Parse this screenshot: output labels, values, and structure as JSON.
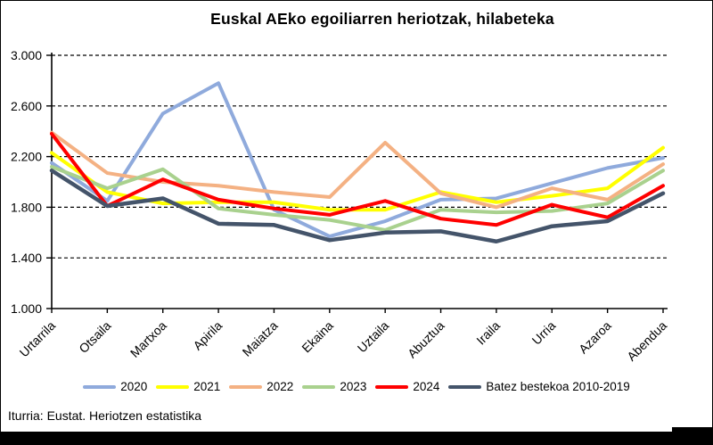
{
  "title": "Euskal AEko egoiliarren heriotzak, hilabeteka",
  "source": "Iturria: Eustat. Heriotzen estatistika",
  "chart_data": {
    "type": "line",
    "title": "Euskal AEko egoiliarren heriotzak, hilabeteka",
    "xlabel": "",
    "ylabel": "",
    "ylim": [
      1000,
      3000
    ],
    "ytick_step": 400,
    "ytick_labels": [
      "3.000",
      "2.600",
      "2.200",
      "1.800",
      "1.400",
      "1.000"
    ],
    "ytick_values": [
      3000,
      2600,
      2200,
      1800,
      1400,
      1000
    ],
    "grid": "horizontal-dashed",
    "legend_position": "bottom",
    "categories": [
      "Urtarrila",
      "Otsaila",
      "Martxoa",
      "Apirila",
      "Maiatza",
      "Ekaina",
      "Uztaila",
      "Abuztua",
      "Iraila",
      "Urria",
      "Azaroa",
      "Abendua"
    ],
    "series": [
      {
        "name": "2020",
        "color": "#8FAADC",
        "stroke_width": 4,
        "values": [
          2150,
          1850,
          2540,
          2780,
          1780,
          1570,
          1690,
          1860,
          1870,
          1990,
          2110,
          2190
        ]
      },
      {
        "name": "2021",
        "color": "#FFFF00",
        "stroke_width": 4,
        "values": [
          2230,
          1920,
          1830,
          1840,
          1840,
          1780,
          1780,
          1920,
          1840,
          1890,
          1950,
          2270
        ]
      },
      {
        "name": "2022",
        "color": "#F4B183",
        "stroke_width": 4,
        "values": [
          2390,
          2070,
          2000,
          1970,
          1920,
          1880,
          2310,
          1910,
          1800,
          1950,
          1860,
          2140
        ]
      },
      {
        "name": "2023",
        "color": "#A9D18E",
        "stroke_width": 4,
        "values": [
          2120,
          1950,
          2100,
          1790,
          1740,
          1700,
          1620,
          1780,
          1760,
          1770,
          1830,
          2090
        ]
      },
      {
        "name": "2024",
        "color": "#FF0000",
        "stroke_width": 4,
        "values": [
          2380,
          1810,
          2020,
          1860,
          1790,
          1740,
          1850,
          1710,
          1660,
          1820,
          1720,
          1970
        ]
      },
      {
        "name": "Batez bestekoa 2010-2019",
        "color": "#44546A",
        "stroke_width": 4.5,
        "values": [
          2090,
          1810,
          1870,
          1670,
          1660,
          1540,
          1600,
          1610,
          1530,
          1650,
          1690,
          1910
        ]
      }
    ],
    "axis_color": "#000000",
    "gridline_color": "#000000"
  }
}
